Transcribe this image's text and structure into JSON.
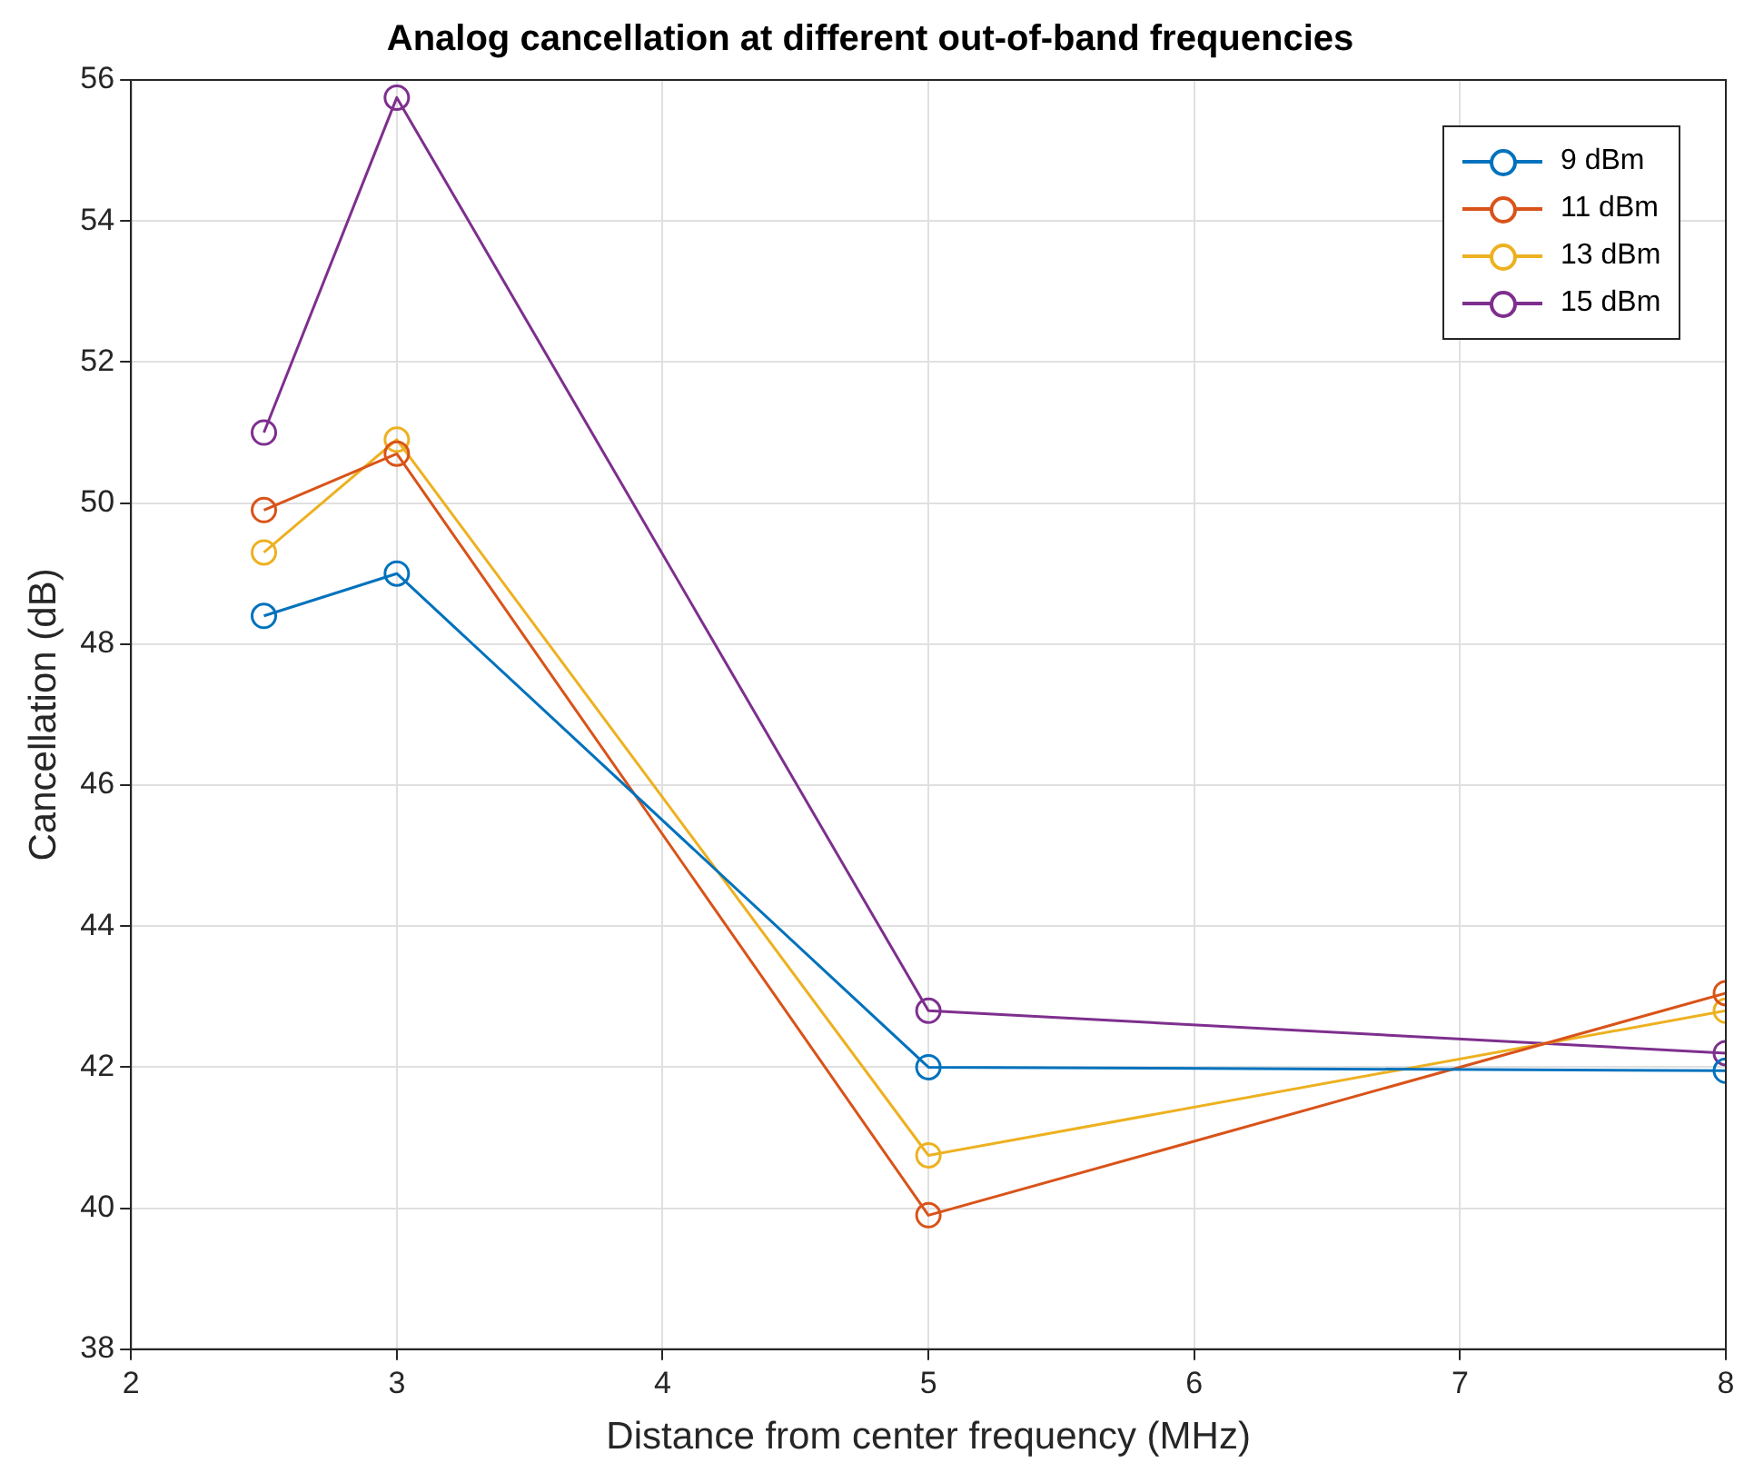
{
  "chart_data": {
    "type": "line",
    "title": "Analog cancellation at different out-of-band frequencies",
    "xlabel": "Distance from center frequency (MHz)",
    "ylabel": "Cancellation (dB)",
    "x": [
      2.5,
      3,
      5,
      8
    ],
    "series": [
      {
        "name": "9 dBm",
        "color": "#0072bd",
        "values": [
          48.4,
          49.0,
          42.0,
          41.95
        ]
      },
      {
        "name": "11 dBm",
        "color": "#d95319",
        "values": [
          49.9,
          50.7,
          39.9,
          43.05
        ]
      },
      {
        "name": "13 dBm",
        "color": "#edb120",
        "values": [
          49.3,
          50.9,
          40.75,
          42.8
        ]
      },
      {
        "name": "15 dBm",
        "color": "#7e2f8e",
        "values": [
          51.0,
          55.75,
          42.8,
          42.2
        ]
      }
    ],
    "xlim": [
      2,
      8
    ],
    "xticks": [
      2,
      3,
      4,
      5,
      6,
      7,
      8
    ],
    "ylim": [
      38,
      56
    ],
    "yticks": [
      38,
      40,
      42,
      44,
      46,
      48,
      50,
      52,
      54,
      56
    ],
    "grid": true,
    "legend": "top right",
    "marker": "circle",
    "line_style": "solid"
  }
}
